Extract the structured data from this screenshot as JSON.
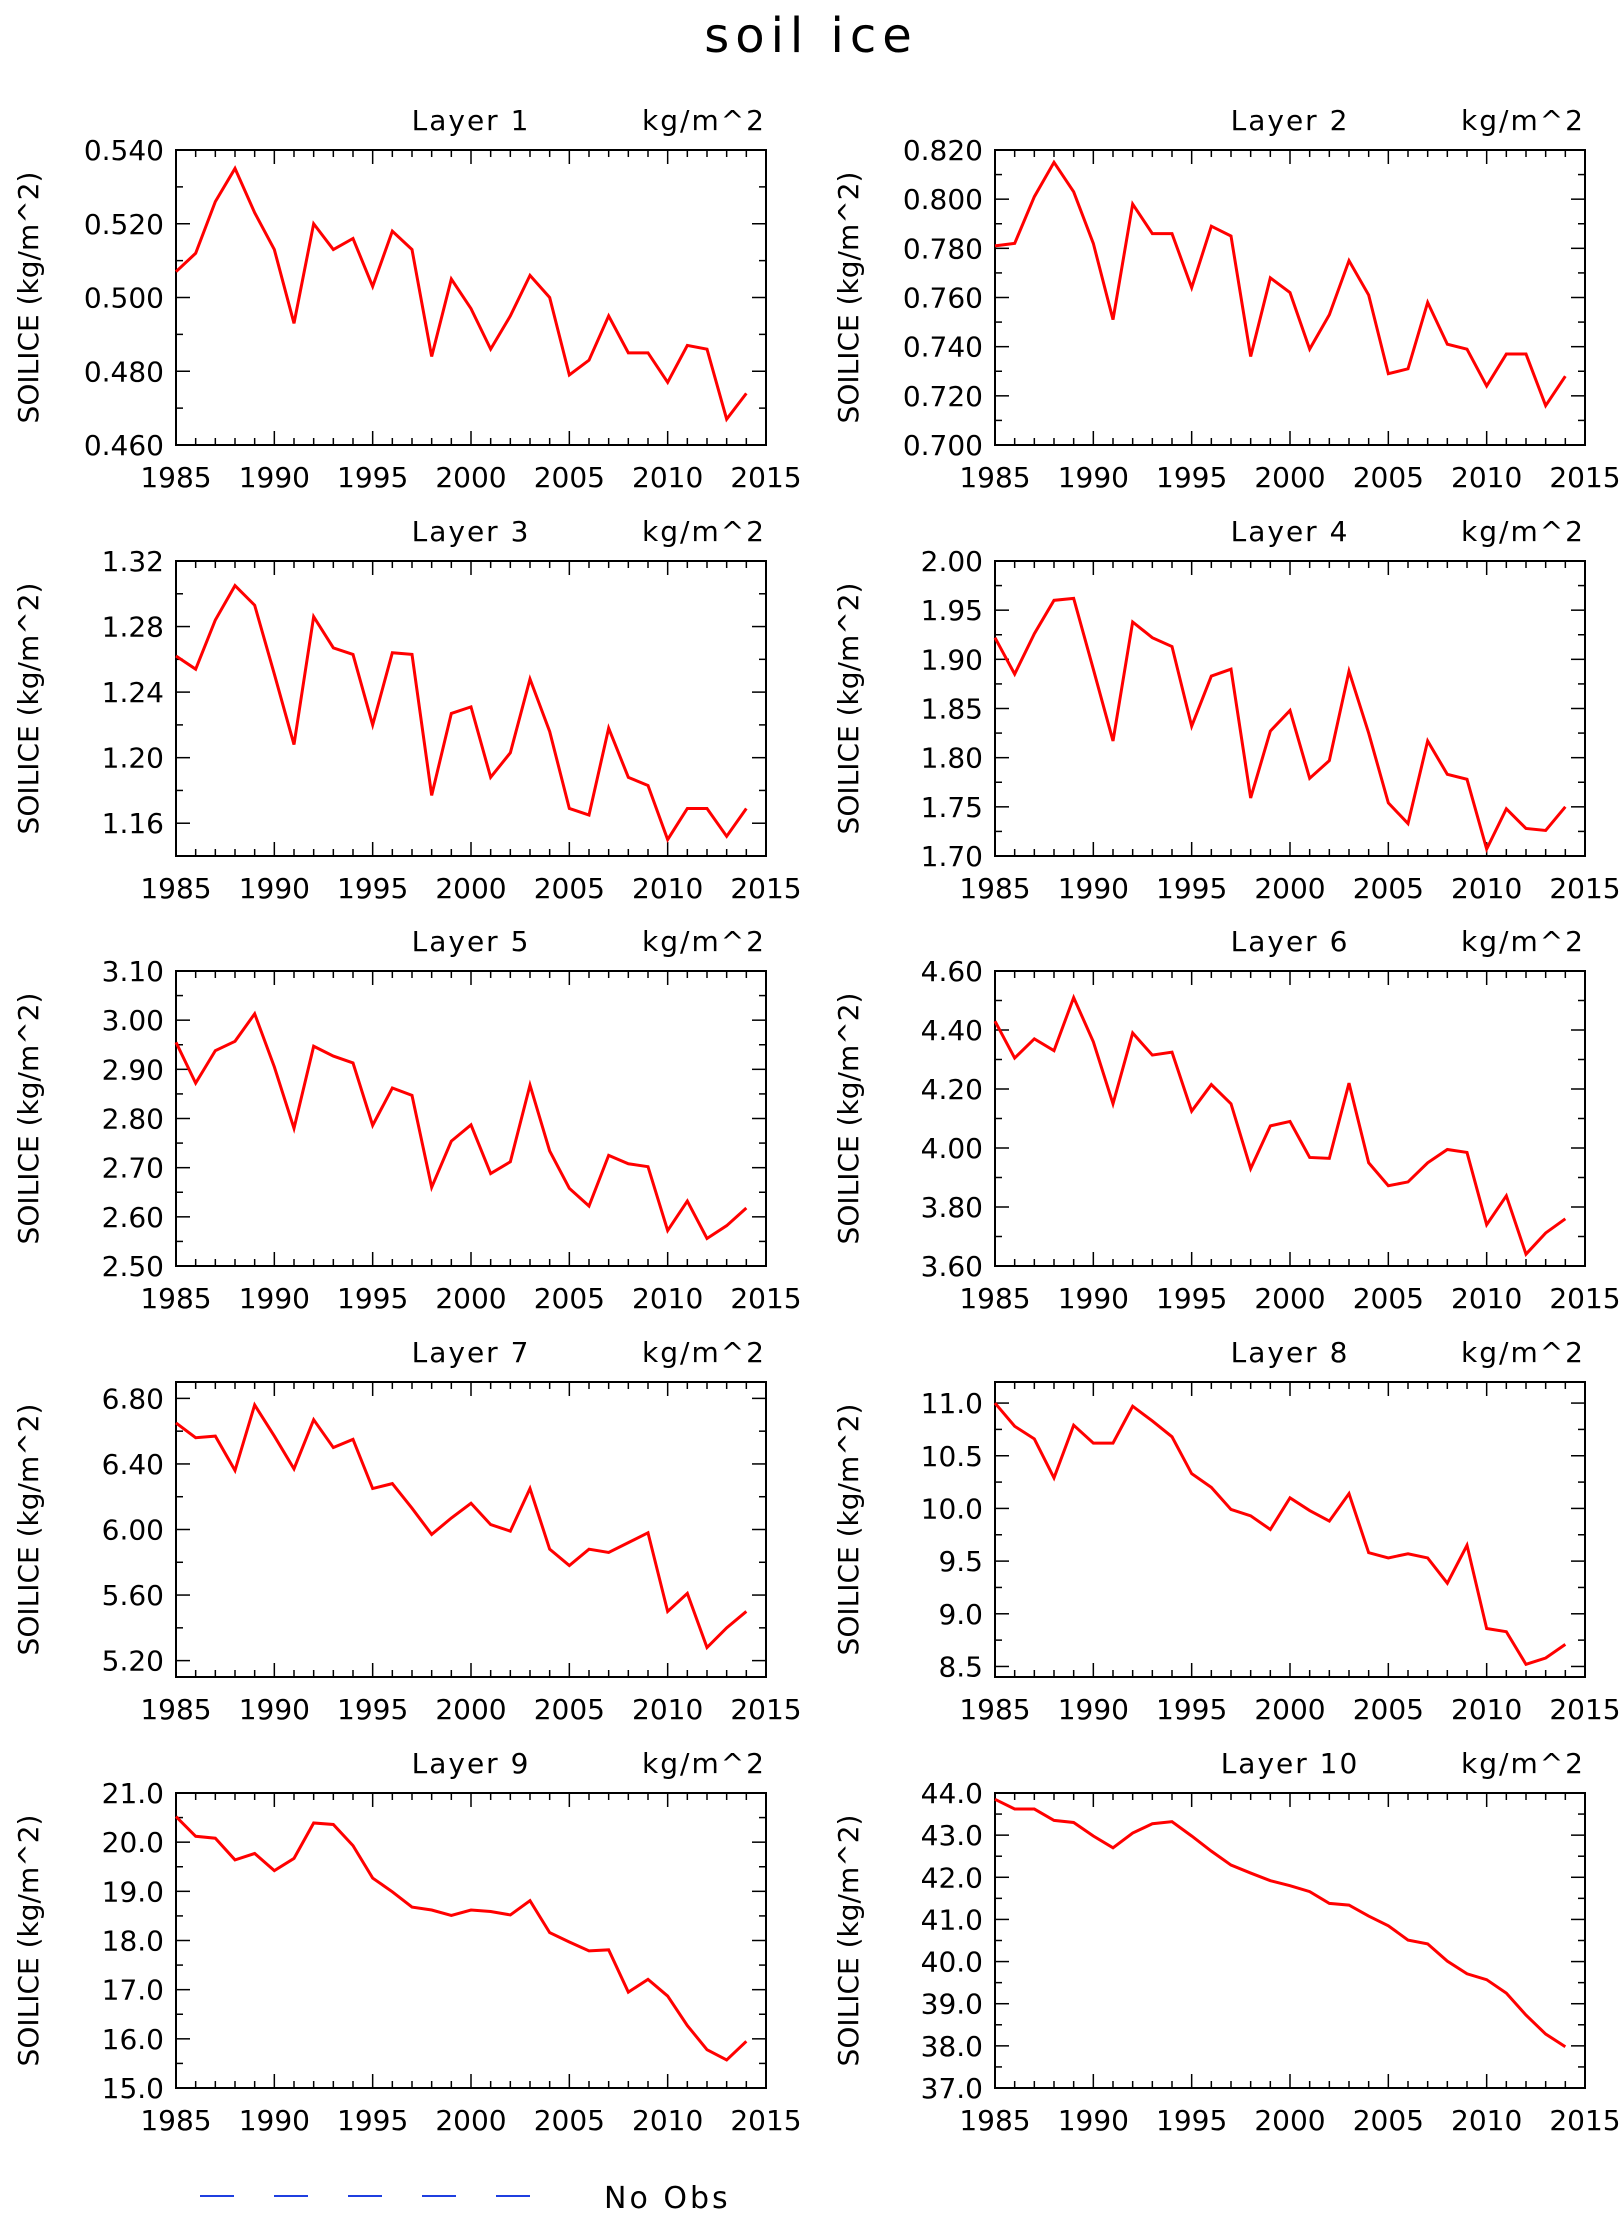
{
  "figure": {
    "title": "soil ice",
    "legend": {
      "label": "No Obs",
      "line_color": "#1f3fe0",
      "line_style": "dashed"
    }
  },
  "colors": {
    "series": "#ff0000",
    "axis": "#000000",
    "legend_line": "#1f3fe0"
  },
  "chart_data": [
    {
      "type": "line",
      "title": "Layer 1",
      "units": "kg/m^2",
      "ylabel": "SOILICE   (kg/m^2)",
      "xlabel": "",
      "xlim": [
        1985,
        2015
      ],
      "ylim": [
        0.46,
        0.54
      ],
      "yticks": [
        "0.460",
        "0.480",
        "0.500",
        "0.520",
        "0.540"
      ],
      "xticks": [
        "1985",
        "1990",
        "1995",
        "2000",
        "2005",
        "2010",
        "2015"
      ],
      "x": [
        1985,
        1986,
        1987,
        1988,
        1989,
        1990,
        1991,
        1992,
        1993,
        1994,
        1995,
        1996,
        1997,
        1998,
        1999,
        2000,
        2001,
        2002,
        2003,
        2004,
        2005,
        2006,
        2007,
        2008,
        2009,
        2010,
        2011,
        2012,
        2013,
        2014
      ],
      "series": [
        {
          "values": [
            0.507,
            0.512,
            0.526,
            0.535,
            0.523,
            0.513,
            0.493,
            0.52,
            0.513,
            0.516,
            0.503,
            0.518,
            0.513,
            0.484,
            0.505,
            0.497,
            0.486,
            0.495,
            0.506,
            0.5,
            0.479,
            0.483,
            0.495,
            0.485,
            0.485,
            0.477,
            0.487,
            0.486,
            0.467,
            0.474
          ]
        }
      ],
      "grid": false,
      "legend": "none"
    },
    {
      "type": "line",
      "title": "Layer 2",
      "units": "kg/m^2",
      "ylabel": "SOILICE   (kg/m^2)",
      "xlabel": "",
      "xlim": [
        1985,
        2015
      ],
      "ylim": [
        0.7,
        0.82
      ],
      "yticks": [
        "0.700",
        "0.720",
        "0.740",
        "0.760",
        "0.780",
        "0.800",
        "0.820"
      ],
      "xticks": [
        "1985",
        "1990",
        "1995",
        "2000",
        "2005",
        "2010",
        "2015"
      ],
      "x": [
        1985,
        1986,
        1987,
        1988,
        1989,
        1990,
        1991,
        1992,
        1993,
        1994,
        1995,
        1996,
        1997,
        1998,
        1999,
        2000,
        2001,
        2002,
        2003,
        2004,
        2005,
        2006,
        2007,
        2008,
        2009,
        2010,
        2011,
        2012,
        2013,
        2014
      ],
      "series": [
        {
          "values": [
            0.781,
            0.782,
            0.801,
            0.815,
            0.803,
            0.782,
            0.751,
            0.798,
            0.786,
            0.786,
            0.764,
            0.789,
            0.785,
            0.736,
            0.768,
            0.762,
            0.739,
            0.753,
            0.775,
            0.761,
            0.729,
            0.731,
            0.758,
            0.741,
            0.739,
            0.724,
            0.737,
            0.737,
            0.716,
            0.728
          ]
        }
      ],
      "grid": false,
      "legend": "none"
    },
    {
      "type": "line",
      "title": "Layer 3",
      "units": "kg/m^2",
      "ylabel": "SOILICE   (kg/m^2)",
      "xlabel": "",
      "xlim": [
        1985,
        2015
      ],
      "ylim": [
        1.14,
        1.32
      ],
      "yticks": [
        "1.16",
        "1.20",
        "1.24",
        "1.28",
        "1.32"
      ],
      "xticks": [
        "1985",
        "1990",
        "1995",
        "2000",
        "2005",
        "2010",
        "2015"
      ],
      "x": [
        1985,
        1986,
        1987,
        1988,
        1989,
        1990,
        1991,
        1992,
        1993,
        1994,
        1995,
        1996,
        1997,
        1998,
        1999,
        2000,
        2001,
        2002,
        2003,
        2004,
        2005,
        2006,
        2007,
        2008,
        2009,
        2010,
        2011,
        2012,
        2013,
        2014
      ],
      "series": [
        {
          "values": [
            1.262,
            1.254,
            1.284,
            1.305,
            1.293,
            1.251,
            1.208,
            1.286,
            1.267,
            1.263,
            1.22,
            1.264,
            1.263,
            1.177,
            1.227,
            1.231,
            1.188,
            1.203,
            1.248,
            1.216,
            1.169,
            1.165,
            1.218,
            1.188,
            1.183,
            1.15,
            1.169,
            1.169,
            1.152,
            1.169
          ]
        }
      ],
      "grid": false,
      "legend": "none"
    },
    {
      "type": "line",
      "title": "Layer 4",
      "units": "kg/m^2",
      "ylabel": "SOILICE   (kg/m^2)",
      "xlabel": "",
      "xlim": [
        1985,
        2015
      ],
      "ylim": [
        1.7,
        2.0
      ],
      "yticks": [
        "1.70",
        "1.75",
        "1.80",
        "1.85",
        "1.90",
        "1.95",
        "2.00"
      ],
      "xticks": [
        "1985",
        "1990",
        "1995",
        "2000",
        "2005",
        "2010",
        "2015"
      ],
      "x": [
        1985,
        1986,
        1987,
        1988,
        1989,
        1990,
        1991,
        1992,
        1993,
        1994,
        1995,
        1996,
        1997,
        1998,
        1999,
        2000,
        2001,
        2002,
        2003,
        2004,
        2005,
        2006,
        2007,
        2008,
        2009,
        2010,
        2011,
        2012,
        2013,
        2014
      ],
      "series": [
        {
          "values": [
            1.922,
            1.885,
            1.926,
            1.96,
            1.962,
            1.89,
            1.817,
            1.938,
            1.922,
            1.913,
            1.832,
            1.883,
            1.89,
            1.759,
            1.827,
            1.848,
            1.779,
            1.797,
            1.888,
            1.825,
            1.754,
            1.733,
            1.817,
            1.783,
            1.778,
            1.707,
            1.748,
            1.728,
            1.726,
            1.75
          ]
        }
      ],
      "grid": false,
      "legend": "none"
    },
    {
      "type": "line",
      "title": "Layer 5",
      "units": "kg/m^2",
      "ylabel": "SOILICE   (kg/m^2)",
      "xlabel": "",
      "xlim": [
        1985,
        2015
      ],
      "ylim": [
        2.5,
        3.1
      ],
      "yticks": [
        "2.50",
        "2.60",
        "2.70",
        "2.80",
        "2.90",
        "3.00",
        "3.10"
      ],
      "xticks": [
        "1985",
        "1990",
        "1995",
        "2000",
        "2005",
        "2010",
        "2015"
      ],
      "x": [
        1985,
        1986,
        1987,
        1988,
        1989,
        1990,
        1991,
        1992,
        1993,
        1994,
        1995,
        1996,
        1997,
        1998,
        1999,
        2000,
        2001,
        2002,
        2003,
        2004,
        2005,
        2006,
        2007,
        2008,
        2009,
        2010,
        2011,
        2012,
        2013,
        2014
      ],
      "series": [
        {
          "values": [
            2.955,
            2.872,
            2.938,
            2.957,
            3.013,
            2.905,
            2.78,
            2.947,
            2.927,
            2.913,
            2.786,
            2.862,
            2.847,
            2.66,
            2.754,
            2.787,
            2.688,
            2.712,
            2.868,
            2.734,
            2.658,
            2.622,
            2.725,
            2.708,
            2.702,
            2.572,
            2.632,
            2.556,
            2.582,
            2.618
          ]
        }
      ],
      "grid": false,
      "legend": "none"
    },
    {
      "type": "line",
      "title": "Layer 6",
      "units": "kg/m^2",
      "ylabel": "SOILICE   (kg/m^2)",
      "xlabel": "",
      "xlim": [
        1985,
        2015
      ],
      "ylim": [
        3.6,
        4.6
      ],
      "yticks": [
        "3.60",
        "3.80",
        "4.00",
        "4.20",
        "4.40",
        "4.60"
      ],
      "xticks": [
        "1985",
        "1990",
        "1995",
        "2000",
        "2005",
        "2010",
        "2015"
      ],
      "x": [
        1985,
        1986,
        1987,
        1988,
        1989,
        1990,
        1991,
        1992,
        1993,
        1994,
        1995,
        1996,
        1997,
        1998,
        1999,
        2000,
        2001,
        2002,
        2003,
        2004,
        2005,
        2006,
        2007,
        2008,
        2009,
        2010,
        2011,
        2012,
        2013,
        2014
      ],
      "series": [
        {
          "values": [
            4.43,
            4.305,
            4.37,
            4.33,
            4.51,
            4.36,
            4.15,
            4.39,
            4.315,
            4.325,
            4.125,
            4.215,
            4.15,
            3.93,
            4.075,
            4.09,
            3.968,
            3.965,
            4.22,
            3.95,
            3.872,
            3.885,
            3.95,
            3.995,
            3.985,
            3.74,
            3.838,
            3.64,
            3.712,
            3.76
          ]
        }
      ],
      "grid": false,
      "legend": "none"
    },
    {
      "type": "line",
      "title": "Layer 7",
      "units": "kg/m^2",
      "ylabel": "SOILICE   (kg/m^2)",
      "xlabel": "",
      "xlim": [
        1985,
        2015
      ],
      "ylim": [
        5.1,
        6.9
      ],
      "yticks": [
        "5.20",
        "5.60",
        "6.00",
        "6.40",
        "6.80"
      ],
      "xticks": [
        "1985",
        "1990",
        "1995",
        "2000",
        "2005",
        "2010",
        "2015"
      ],
      "x": [
        1985,
        1986,
        1987,
        1988,
        1989,
        1990,
        1991,
        1992,
        1993,
        1994,
        1995,
        1996,
        1997,
        1998,
        1999,
        2000,
        2001,
        2002,
        2003,
        2004,
        2005,
        2006,
        2007,
        2008,
        2009,
        2010,
        2011,
        2012,
        2013,
        2014
      ],
      "series": [
        {
          "values": [
            6.65,
            6.56,
            6.57,
            6.36,
            6.76,
            6.57,
            6.37,
            6.67,
            6.5,
            6.55,
            6.25,
            6.28,
            6.13,
            5.97,
            6.07,
            6.16,
            6.03,
            5.99,
            6.25,
            5.88,
            5.78,
            5.88,
            5.86,
            5.92,
            5.98,
            5.5,
            5.61,
            5.28,
            5.4,
            5.5
          ]
        }
      ],
      "grid": false,
      "legend": "none"
    },
    {
      "type": "line",
      "title": "Layer 8",
      "units": "kg/m^2",
      "ylabel": "SOILICE   (kg/m^2)",
      "xlabel": "",
      "xlim": [
        1985,
        2015
      ],
      "ylim": [
        8.4,
        11.2
      ],
      "yticks": [
        "8.5",
        "9.0",
        "9.5",
        "10.0",
        "10.5",
        "11.0"
      ],
      "xticks": [
        "1985",
        "1990",
        "1995",
        "2000",
        "2005",
        "2010",
        "2015"
      ],
      "x": [
        1985,
        1986,
        1987,
        1988,
        1989,
        1990,
        1991,
        1992,
        1993,
        1994,
        1995,
        1996,
        1997,
        1998,
        1999,
        2000,
        2001,
        2002,
        2003,
        2004,
        2005,
        2006,
        2007,
        2008,
        2009,
        2010,
        2011,
        2012,
        2013,
        2014
      ],
      "series": [
        {
          "values": [
            11.0,
            10.78,
            10.66,
            10.29,
            10.79,
            10.62,
            10.62,
            10.97,
            10.83,
            10.68,
            10.33,
            10.2,
            9.99,
            9.93,
            9.8,
            10.1,
            9.98,
            9.88,
            10.14,
            9.58,
            9.53,
            9.57,
            9.53,
            9.29,
            9.65,
            8.86,
            8.83,
            8.52,
            8.58,
            8.71
          ]
        }
      ],
      "grid": false,
      "legend": "none"
    },
    {
      "type": "line",
      "title": "Layer 9",
      "units": "kg/m^2",
      "ylabel": "SOILICE   (kg/m^2)",
      "xlabel": "",
      "xlim": [
        1985,
        2015
      ],
      "ylim": [
        15.0,
        21.0
      ],
      "yticks": [
        "15.0",
        "16.0",
        "17.0",
        "18.0",
        "19.0",
        "20.0",
        "21.0"
      ],
      "xticks": [
        "1985",
        "1990",
        "1995",
        "2000",
        "2005",
        "2010",
        "2015"
      ],
      "x": [
        1985,
        1986,
        1987,
        1988,
        1989,
        1990,
        1991,
        1992,
        1993,
        1994,
        1995,
        1996,
        1997,
        1998,
        1999,
        2000,
        2001,
        2002,
        2003,
        2004,
        2005,
        2006,
        2007,
        2008,
        2009,
        2010,
        2011,
        2012,
        2013,
        2014
      ],
      "series": [
        {
          "values": [
            20.52,
            20.12,
            20.08,
            19.64,
            19.77,
            19.42,
            19.67,
            20.39,
            20.36,
            19.93,
            19.27,
            18.99,
            18.68,
            18.62,
            18.51,
            18.62,
            18.59,
            18.52,
            18.81,
            18.16,
            17.97,
            17.79,
            17.81,
            16.95,
            17.21,
            16.87,
            16.27,
            15.78,
            15.57,
            15.95
          ]
        }
      ],
      "grid": false,
      "legend": "none"
    },
    {
      "type": "line",
      "title": "Layer 10",
      "units": "kg/m^2",
      "ylabel": "SOILICE   (kg/m^2)",
      "xlabel": "",
      "xlim": [
        1985,
        2015
      ],
      "ylim": [
        37.0,
        44.0
      ],
      "yticks": [
        "37.0",
        "38.0",
        "39.0",
        "40.0",
        "41.0",
        "42.0",
        "43.0",
        "44.0"
      ],
      "xticks": [
        "1985",
        "1990",
        "1995",
        "2000",
        "2005",
        "2010",
        "2015"
      ],
      "x": [
        1985,
        1986,
        1987,
        1988,
        1989,
        1990,
        1991,
        1992,
        1993,
        1994,
        1995,
        1996,
        1997,
        1998,
        1999,
        2000,
        2001,
        2002,
        2003,
        2004,
        2005,
        2006,
        2007,
        2008,
        2009,
        2010,
        2011,
        2012,
        2013,
        2014
      ],
      "series": [
        {
          "values": [
            43.85,
            43.62,
            43.62,
            43.35,
            43.3,
            42.98,
            42.7,
            43.05,
            43.27,
            43.32,
            42.98,
            42.62,
            42.29,
            42.1,
            41.92,
            41.8,
            41.66,
            41.38,
            41.34,
            41.08,
            40.85,
            40.51,
            40.42,
            40.01,
            39.71,
            39.57,
            39.25,
            38.73,
            38.28,
            37.98
          ]
        }
      ],
      "grid": false,
      "legend": "none"
    }
  ]
}
